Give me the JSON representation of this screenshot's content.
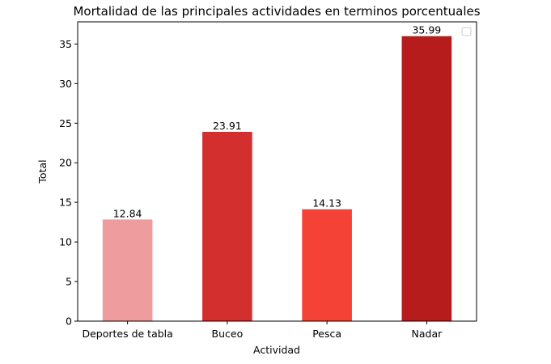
{
  "chart_data": {
    "type": "bar",
    "title": "Mortalidad de las principales actividades en terminos porcentuales",
    "xlabel": "Actividad",
    "ylabel": "Total",
    "categories": [
      "Deportes de tabla",
      "Buceo",
      "Pesca",
      "Nadar"
    ],
    "values": [
      12.84,
      23.91,
      14.13,
      35.99
    ],
    "value_labels": [
      "12.84",
      "23.91",
      "14.13",
      "35.99"
    ],
    "colors": [
      "#ee9c9e",
      "#d32f2f",
      "#f44336",
      "#b71c1c"
    ],
    "ylim": [
      0,
      37.8
    ],
    "yticks": [
      0,
      5,
      10,
      15,
      20,
      25,
      30,
      35
    ],
    "ytick_labels": [
      "0",
      "5",
      "10",
      "15",
      "20",
      "25",
      "30",
      "35"
    ],
    "grid": false,
    "legend": {
      "position": "top-right",
      "entries": []
    }
  }
}
